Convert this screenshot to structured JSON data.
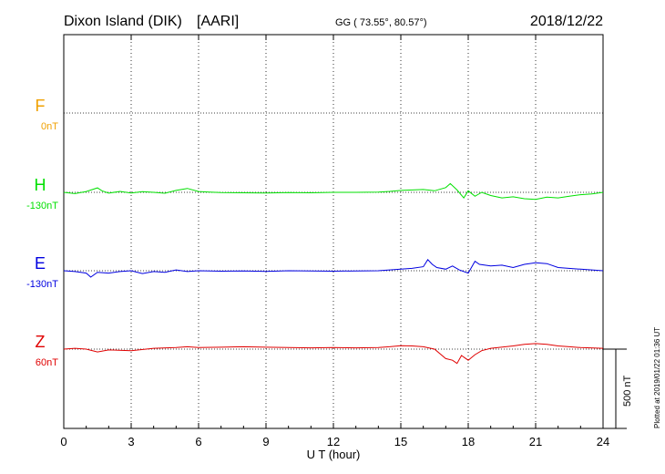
{
  "chart_data": {
    "type": "line",
    "station": "Dixon Island (DIK)",
    "institute": "[AARI]",
    "coordinates": "GG ( 73.55°,  80.57°)",
    "date": "2018/12/22",
    "xlabel": "U T (hour)",
    "xlim": [
      0,
      24
    ],
    "xticks": [
      "0",
      "3",
      "6",
      "9",
      "12",
      "15",
      "18",
      "21",
      "24"
    ],
    "grid": true,
    "scale_bar_label": "500 nT",
    "scale_bar_nT": 500,
    "plotted_note": "Plotted at 2019/01/22 01:36 UT",
    "units": "nT",
    "series": [
      {
        "name": "F",
        "baseline_label": "0nT",
        "color": "#f0a000",
        "x": [],
        "y": []
      },
      {
        "name": "H",
        "baseline_label": "-130nT",
        "color": "#00e000",
        "x": [
          0,
          0.5,
          1.0,
          1.5,
          1.7,
          2.0,
          2.5,
          3.0,
          3.5,
          4.0,
          4.5,
          5.0,
          5.5,
          6.0,
          6.5,
          7.0,
          8.0,
          9.0,
          10.0,
          11.0,
          12.0,
          13.0,
          14.0,
          14.5,
          15.0,
          15.5,
          16.0,
          16.5,
          17.0,
          17.2,
          17.5,
          17.8,
          18.0,
          18.3,
          18.6,
          19.0,
          19.5,
          20.0,
          20.5,
          21.0,
          21.5,
          22.0,
          22.5,
          23.0,
          23.5,
          24.0
        ],
        "y": [
          0,
          -8,
          5,
          28,
          10,
          -5,
          6,
          -4,
          4,
          0,
          -6,
          12,
          25,
          5,
          2,
          -2,
          -3,
          -4,
          -2,
          -3,
          0,
          0,
          2,
          6,
          12,
          15,
          18,
          10,
          30,
          55,
          15,
          -35,
          10,
          -25,
          0,
          -20,
          -35,
          -28,
          -40,
          -45,
          -30,
          -35,
          -25,
          -15,
          -10,
          0
        ]
      },
      {
        "name": "E",
        "baseline_label": "-130nT",
        "color": "#0000e0",
        "x": [
          0,
          0.5,
          1.0,
          1.2,
          1.5,
          2.0,
          2.5,
          3.0,
          3.5,
          4.0,
          4.5,
          5.0,
          5.5,
          6.0,
          7.0,
          8.0,
          9.0,
          10.0,
          11.0,
          12.0,
          13.0,
          14.0,
          14.5,
          15.0,
          15.5,
          16.0,
          16.2,
          16.4,
          16.6,
          17.0,
          17.3,
          17.6,
          18.0,
          18.3,
          18.5,
          19.0,
          19.5,
          20.0,
          20.5,
          21.0,
          21.5,
          22.0,
          23.0,
          24.0
        ],
        "y": [
          0,
          -5,
          -15,
          -40,
          -10,
          -15,
          -5,
          0,
          -18,
          -5,
          -10,
          5,
          -5,
          0,
          -3,
          -2,
          -4,
          0,
          -2,
          -3,
          -1,
          0,
          5,
          10,
          15,
          25,
          70,
          40,
          20,
          10,
          30,
          5,
          -15,
          60,
          40,
          30,
          35,
          20,
          40,
          50,
          45,
          20,
          10,
          0
        ]
      },
      {
        "name": "Z",
        "baseline_label": "60nT",
        "color": "#e00000",
        "x": [
          0,
          0.5,
          1.0,
          1.5,
          2.0,
          3.0,
          4.0,
          5.0,
          5.5,
          6.0,
          7.0,
          8.0,
          9.0,
          10.0,
          11.0,
          12.0,
          13.0,
          14.0,
          14.5,
          15.0,
          15.5,
          16.0,
          16.5,
          17.0,
          17.3,
          17.5,
          17.7,
          18.0,
          18.3,
          18.6,
          19.0,
          20.0,
          20.5,
          21.0,
          21.5,
          22.0,
          22.5,
          23.0,
          24.0
        ],
        "y": [
          0,
          5,
          0,
          -18,
          -5,
          -10,
          5,
          10,
          15,
          10,
          12,
          15,
          12,
          10,
          8,
          10,
          8,
          10,
          15,
          22,
          20,
          15,
          0,
          -60,
          -70,
          -90,
          -40,
          -70,
          -35,
          -10,
          5,
          20,
          30,
          35,
          30,
          20,
          15,
          10,
          5
        ]
      }
    ]
  }
}
